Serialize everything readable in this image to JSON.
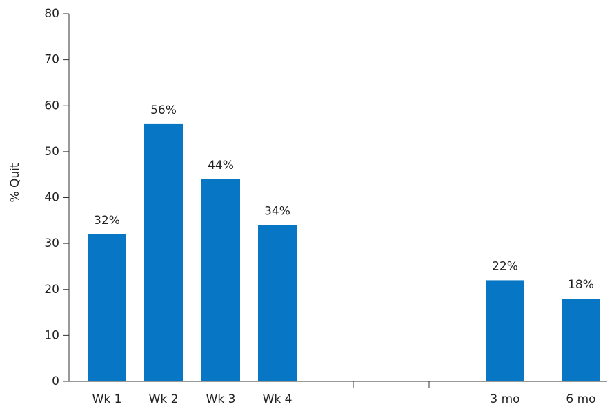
{
  "chart_data": {
    "type": "bar",
    "y_label": "% Quit",
    "categories": [
      "Wk 1",
      "Wk 2",
      "Wk 3",
      "Wk 4",
      null,
      null,
      "3 mo",
      "6 mo"
    ],
    "values": [
      32,
      56,
      44,
      34,
      null,
      null,
      22,
      18
    ],
    "value_labels": [
      "32%",
      "56%",
      "44%",
      "34%",
      null,
      null,
      "22%",
      "18%"
    ],
    "color": "#0777c5",
    "ylim": [
      0,
      80
    ],
    "yticks": [
      0,
      10,
      20,
      30,
      40,
      50,
      60,
      70,
      80
    ],
    "grid": false
  }
}
